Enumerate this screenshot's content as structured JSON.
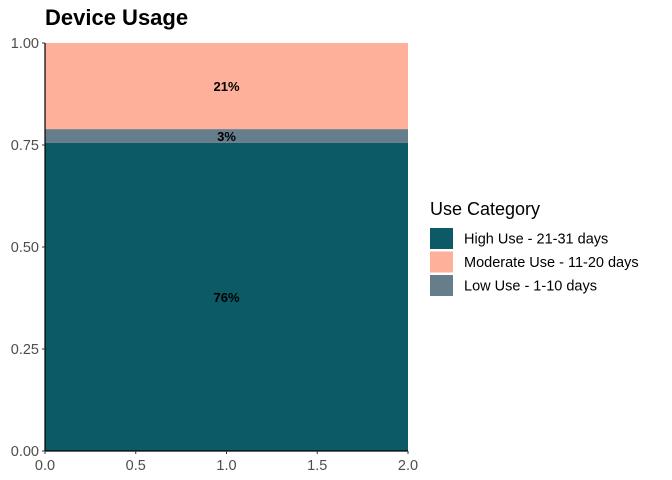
{
  "chart_data": {
    "type": "bar",
    "stacked": true,
    "title": "Device Usage",
    "xlim": [
      0,
      2
    ],
    "ylim": [
      0,
      1
    ],
    "x_ticks": [
      "0.0",
      "0.5",
      "1.0",
      "1.5",
      "2.0"
    ],
    "y_ticks": [
      "0.00",
      "0.25",
      "0.50",
      "0.75",
      "1.00"
    ],
    "segments": [
      {
        "name": "High Use - 21-31 days",
        "value": 0.755,
        "label": "76%",
        "color": "#0b5a66"
      },
      {
        "name": "Low Use - 1-10 days",
        "value": 0.034,
        "label": "3%",
        "color": "#667e8c"
      },
      {
        "name": "Moderate Use - 11-20 days",
        "value": 0.211,
        "label": "21%",
        "color": "#ffb09b"
      }
    ],
    "legend": {
      "title": "Use Category",
      "placement": "right",
      "entries": [
        {
          "name": "High Use - 21-31 days",
          "color": "#0b5a66"
        },
        {
          "name": "Moderate Use - 11-20 days",
          "color": "#ffb09b"
        },
        {
          "name": "Low Use - 1-10 days",
          "color": "#667e8c"
        }
      ]
    }
  }
}
